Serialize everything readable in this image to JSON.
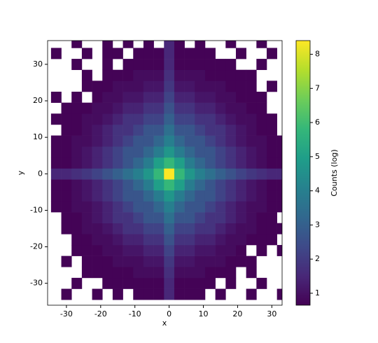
{
  "chart_data": {
    "type": "hist2d",
    "xlabel": "x",
    "ylabel": "y",
    "colorbar_label": "Counts (log)",
    "colormap": "viridis",
    "xlim": [
      -35.5,
      33
    ],
    "ylim": [
      -36,
      36.5
    ],
    "xticks": [
      -30,
      -20,
      -10,
      0,
      10,
      20,
      30
    ],
    "yticks": [
      -30,
      -20,
      -10,
      0,
      10,
      20,
      30
    ],
    "clim": [
      0.65,
      8.4
    ],
    "cticks": [
      1,
      2,
      3,
      4,
      5,
      6,
      7,
      8
    ],
    "xbins": [
      -34.5,
      -31.5,
      -28.5,
      -25.5,
      -22.5,
      -19.5,
      -16.5,
      -13.5,
      -10.5,
      -7.5,
      -4.5,
      -1.5,
      1.5,
      4.5,
      7.5,
      10.5,
      13.5,
      16.5,
      19.5,
      22.5,
      25.5,
      28.5,
      31.5,
      34.5
    ],
    "ybins": [
      -34.5,
      -31.5,
      -28.5,
      -25.5,
      -22.5,
      -19.5,
      -16.5,
      -13.5,
      -10.5,
      -7.5,
      -4.5,
      -1.5,
      1.5,
      4.5,
      7.5,
      10.5,
      13.5,
      16.5,
      19.5,
      22.5,
      25.5,
      28.5,
      31.5,
      34.5,
      37.5
    ],
    "z": [
      [
        null,
        0.7,
        null,
        null,
        0.7,
        null,
        0.7,
        null,
        0.7,
        0.7,
        0.7,
        1.5,
        0.7,
        0.7,
        0.7,
        null,
        0.7,
        null,
        null,
        0.7,
        null,
        null,
        0.7
      ],
      [
        null,
        null,
        0.7,
        null,
        null,
        0.7,
        0.7,
        0.7,
        0.7,
        0.7,
        0.7,
        1.5,
        0.7,
        0.7,
        0.7,
        0.7,
        null,
        0.7,
        null,
        null,
        0.7,
        null,
        null
      ],
      [
        null,
        null,
        null,
        0.7,
        0.7,
        0.7,
        0.7,
        0.7,
        0.9,
        0.9,
        0.9,
        1.7,
        0.9,
        0.9,
        0.9,
        0.7,
        0.7,
        0.7,
        null,
        0.7,
        null,
        null,
        null
      ],
      [
        null,
        0.7,
        null,
        0.7,
        0.7,
        0.7,
        0.9,
        0.9,
        0.9,
        1.1,
        1.1,
        1.9,
        1.1,
        1.1,
        0.9,
        0.9,
        0.9,
        0.7,
        0.7,
        0.7,
        null,
        null,
        null
      ],
      [
        null,
        null,
        0.7,
        0.7,
        0.7,
        0.9,
        0.9,
        1.1,
        1.1,
        1.4,
        1.4,
        2.2,
        1.4,
        1.4,
        1.1,
        1.1,
        0.9,
        0.9,
        0.7,
        null,
        0.7,
        null,
        0.7
      ],
      [
        null,
        null,
        0.7,
        0.7,
        0.9,
        0.9,
        1.1,
        1.4,
        1.4,
        1.8,
        1.8,
        2.6,
        1.8,
        1.8,
        1.4,
        1.4,
        1.1,
        0.9,
        0.9,
        0.7,
        0.7,
        0.7,
        null
      ],
      [
        null,
        0.7,
        0.7,
        0.9,
        0.9,
        1.1,
        1.4,
        1.8,
        1.8,
        2.2,
        2.2,
        3.0,
        2.2,
        2.2,
        1.8,
        1.8,
        1.4,
        1.1,
        0.9,
        0.9,
        0.7,
        0.7,
        0.7
      ],
      [
        null,
        0.7,
        0.7,
        0.9,
        1.1,
        1.4,
        1.8,
        1.8,
        2.2,
        2.7,
        2.7,
        3.5,
        2.7,
        2.7,
        2.2,
        1.8,
        1.8,
        1.4,
        1.1,
        0.9,
        0.7,
        0.7,
        null
      ],
      [
        0.7,
        0.7,
        0.9,
        0.9,
        1.1,
        1.4,
        1.8,
        2.2,
        2.7,
        2.7,
        3.2,
        4.0,
        3.2,
        2.7,
        2.7,
        2.2,
        1.8,
        1.4,
        1.1,
        0.9,
        0.9,
        0.7,
        0.7
      ],
      [
        0.7,
        0.7,
        0.9,
        1.1,
        1.4,
        1.8,
        2.2,
        2.7,
        2.7,
        3.2,
        3.9,
        4.7,
        3.9,
        3.2,
        2.7,
        2.7,
        2.2,
        1.8,
        1.4,
        1.1,
        0.9,
        0.7,
        0.7
      ],
      [
        0.7,
        0.7,
        0.9,
        1.1,
        1.4,
        1.8,
        2.2,
        2.7,
        3.2,
        3.9,
        5.0,
        5.8,
        5.0,
        3.9,
        3.2,
        2.7,
        2.2,
        1.8,
        1.4,
        1.1,
        0.9,
        0.7,
        0.7
      ],
      [
        1.5,
        1.5,
        1.7,
        1.9,
        2.2,
        2.6,
        3.0,
        3.5,
        4.0,
        4.7,
        5.8,
        8.4,
        5.8,
        4.7,
        4.0,
        3.5,
        3.0,
        2.6,
        2.2,
        1.9,
        1.7,
        1.5,
        1.5
      ],
      [
        0.7,
        0.7,
        0.9,
        1.1,
        1.4,
        1.8,
        2.2,
        2.7,
        3.2,
        3.9,
        5.0,
        5.8,
        5.0,
        3.9,
        3.2,
        2.7,
        2.2,
        1.8,
        1.4,
        1.1,
        0.9,
        0.7,
        0.7
      ],
      [
        0.7,
        0.7,
        0.9,
        1.1,
        1.4,
        1.8,
        2.2,
        2.7,
        2.7,
        3.2,
        3.9,
        4.7,
        3.9,
        3.2,
        2.7,
        2.7,
        2.2,
        1.8,
        1.4,
        1.1,
        0.9,
        0.7,
        0.7
      ],
      [
        0.7,
        0.7,
        0.9,
        0.9,
        1.1,
        1.4,
        1.8,
        2.2,
        2.7,
        2.7,
        3.2,
        4.0,
        3.2,
        2.7,
        2.7,
        2.2,
        1.8,
        1.4,
        1.1,
        0.9,
        0.9,
        0.7,
        0.7
      ],
      [
        null,
        0.7,
        0.7,
        0.9,
        1.1,
        1.4,
        1.8,
        1.8,
        2.2,
        2.7,
        2.7,
        3.5,
        2.7,
        2.7,
        2.2,
        1.8,
        1.8,
        1.4,
        1.1,
        0.9,
        0.7,
        0.7,
        null
      ],
      [
        0.7,
        0.7,
        0.7,
        0.9,
        0.9,
        1.1,
        1.4,
        1.8,
        1.8,
        2.2,
        2.2,
        3.0,
        2.2,
        2.2,
        1.8,
        1.8,
        1.4,
        1.1,
        0.9,
        0.9,
        0.7,
        0.7,
        null
      ],
      [
        null,
        0.7,
        0.7,
        0.7,
        0.9,
        0.9,
        1.1,
        1.4,
        1.4,
        1.8,
        1.8,
        2.6,
        1.8,
        1.8,
        1.4,
        1.4,
        1.1,
        0.9,
        0.9,
        0.7,
        0.7,
        null,
        null
      ],
      [
        0.7,
        null,
        0.7,
        null,
        0.7,
        0.9,
        0.9,
        1.1,
        1.1,
        1.4,
        1.4,
        2.2,
        1.4,
        1.4,
        1.1,
        1.1,
        0.9,
        0.9,
        0.7,
        0.7,
        0.7,
        null,
        null
      ],
      [
        null,
        null,
        null,
        0.7,
        0.7,
        0.7,
        0.9,
        0.9,
        0.9,
        1.1,
        1.1,
        1.9,
        1.1,
        1.1,
        0.9,
        0.9,
        0.9,
        0.7,
        0.7,
        0.7,
        null,
        0.7,
        null
      ],
      [
        null,
        null,
        null,
        0.7,
        null,
        0.7,
        0.7,
        0.7,
        0.9,
        0.9,
        0.9,
        1.7,
        0.9,
        0.9,
        0.9,
        0.7,
        0.7,
        0.7,
        0.7,
        0.7,
        null,
        null,
        null
      ],
      [
        null,
        null,
        0.7,
        null,
        null,
        0.7,
        null,
        0.7,
        0.7,
        0.7,
        0.7,
        1.5,
        0.7,
        0.7,
        0.7,
        0.7,
        0.7,
        0.7,
        null,
        null,
        0.7,
        null,
        null
      ],
      [
        0.7,
        null,
        null,
        0.7,
        null,
        0.7,
        0.7,
        null,
        0.7,
        0.7,
        0.7,
        1.5,
        0.7,
        0.7,
        0.7,
        0.7,
        null,
        null,
        0.7,
        null,
        null,
        0.7,
        null
      ],
      [
        null,
        null,
        0.7,
        null,
        null,
        0.7,
        null,
        0.7,
        null,
        0.7,
        null,
        1.5,
        0.7,
        null,
        0.7,
        null,
        null,
        0.7,
        null,
        null,
        0.7,
        null,
        null
      ]
    ]
  }
}
